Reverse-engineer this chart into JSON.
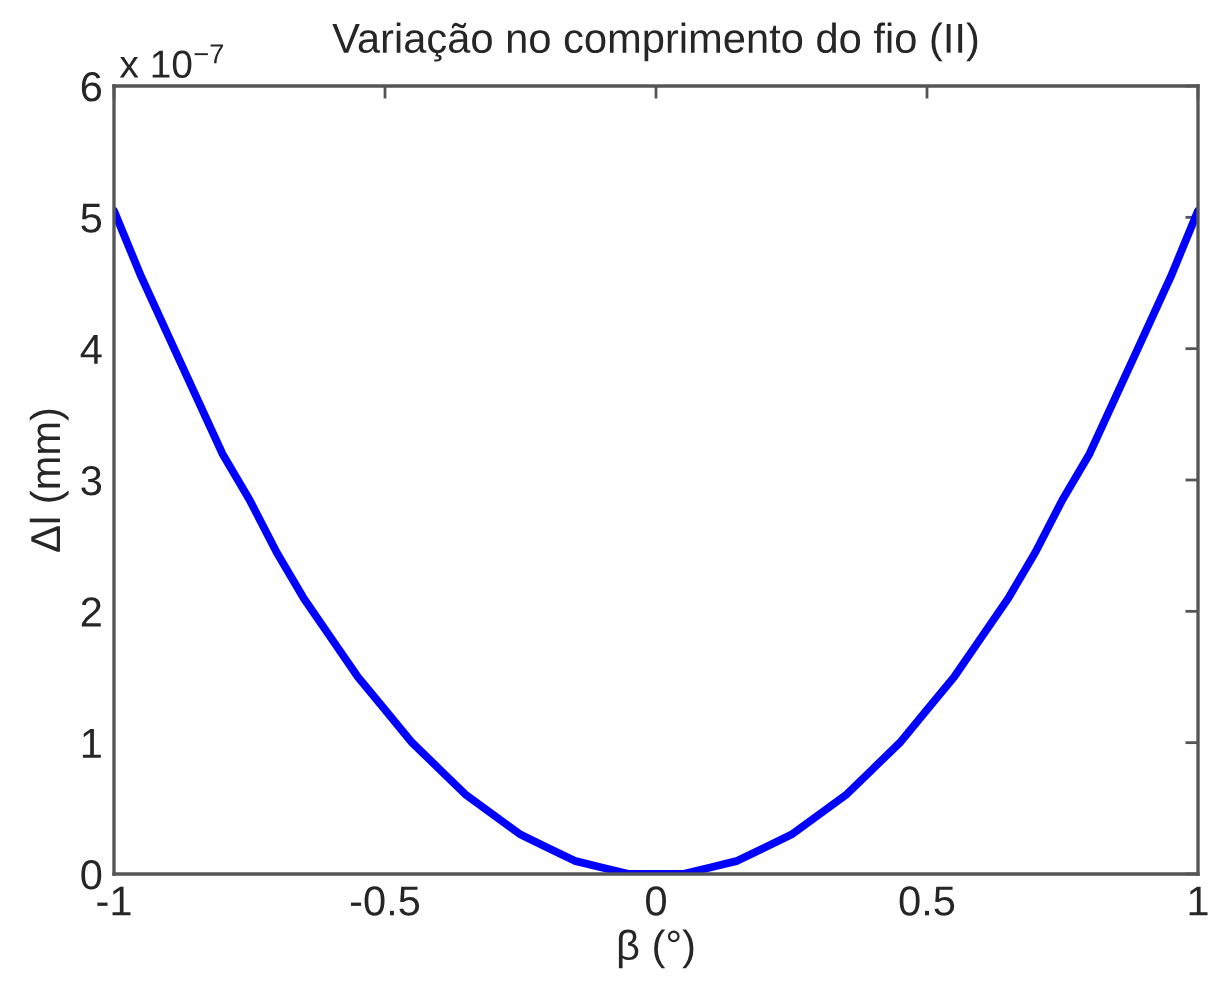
{
  "chart_data": {
    "type": "line",
    "title": "Variação no comprimento do fio (II)",
    "xlabel": "β (°)",
    "ylabel": "Δl (mm)",
    "annotations": [
      "x 10$^{−7}$"
    ],
    "x": [
      -1,
      -0.95,
      -0.9,
      -0.85,
      -0.8,
      -0.75,
      -0.7,
      -0.65,
      -0.6,
      -0.55,
      -0.5,
      -0.45,
      -0.4,
      -0.35,
      -0.3,
      -0.25,
      -0.2,
      -0.15,
      -0.1,
      -0.05,
      0,
      0.05,
      0.1,
      0.15,
      0.2,
      0.25,
      0.3,
      0.35,
      0.4,
      0.45,
      0.5,
      0.55,
      0.6,
      0.65,
      0.7,
      0.75,
      0.8,
      0.85,
      0.9,
      0.95,
      1
    ],
    "series": [
      {
        "color": "#0000ff",
        "values": [
          5.05,
          4.55,
          4.1,
          3.65,
          3.2,
          2.85,
          2.45,
          2.1,
          1.8,
          1.5,
          1.25,
          1.0,
          0.8,
          0.6,
          0.45,
          0.3,
          0.2,
          0.1,
          0.05,
          0,
          0,
          0,
          0.05,
          0.1,
          0.2,
          0.3,
          0.45,
          0.6,
          0.8,
          1.0,
          1.25,
          1.5,
          1.8,
          2.1,
          2.45,
          2.85,
          3.2,
          3.65,
          4.1,
          4.55,
          5.05
        ]
      }
    ],
    "xlim": [
      -1,
      1
    ],
    "xticks": [
      -1,
      -0.5,
      0,
      0.5,
      1
    ],
    "ylim": [
      0,
      6
    ],
    "yticks": [
      0,
      1,
      2,
      3,
      4,
      5,
      6
    ]
  }
}
